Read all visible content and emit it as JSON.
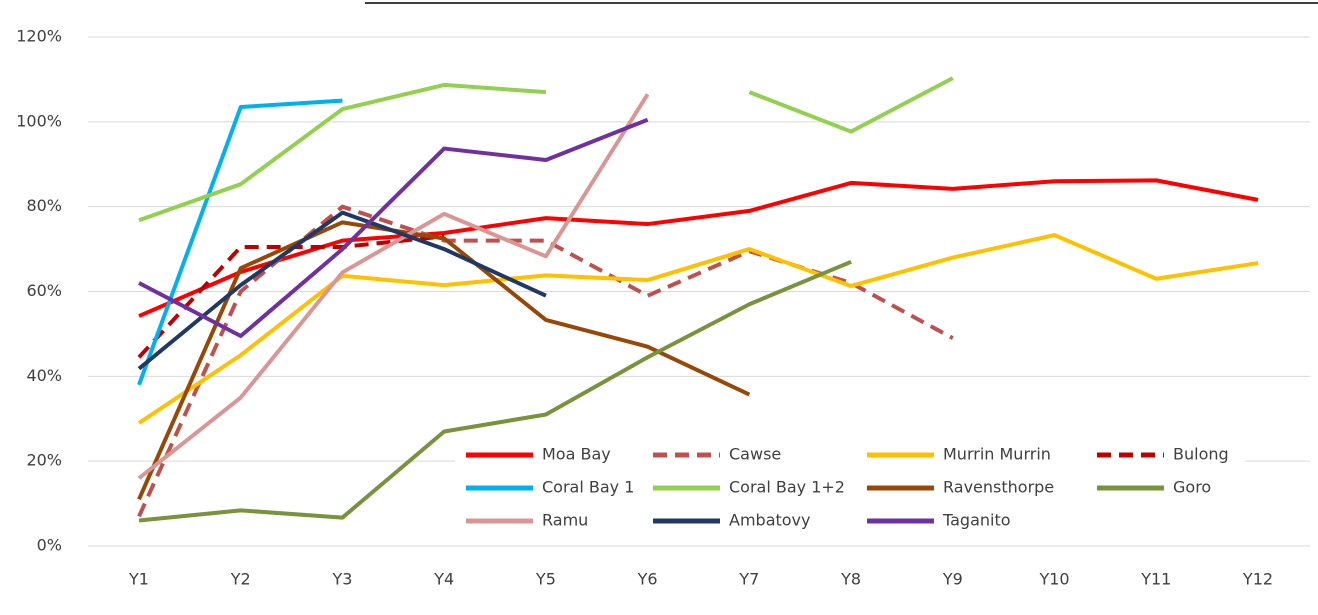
{
  "chart_data": {
    "type": "line",
    "categories": [
      "Y1",
      "Y2",
      "Y3",
      "Y4",
      "Y5",
      "Y6",
      "Y7",
      "Y8",
      "Y9",
      "Y10",
      "Y11",
      "Y12"
    ],
    "ylim": [
      0,
      120
    ],
    "yticks": [
      {
        "value": 0,
        "label": "0%"
      },
      {
        "value": 20,
        "label": "20%"
      },
      {
        "value": 40,
        "label": "40%"
      },
      {
        "value": 60,
        "label": "60%"
      },
      {
        "value": 80,
        "label": "80%"
      },
      {
        "value": 100,
        "label": "100%"
      },
      {
        "value": 120,
        "label": "120%"
      }
    ],
    "grid": true,
    "series": [
      {
        "name": "Moa Bay",
        "color": "#ff0000",
        "dashed": false,
        "values": [
          54.2,
          64.6,
          72,
          73.8,
          77.3,
          75.9,
          79,
          85.6,
          84.2,
          86,
          86.2,
          81.6
        ]
      },
      {
        "name": "Cawse",
        "color": "#c0504d",
        "dashed": true,
        "values": [
          7,
          60,
          80,
          72,
          72,
          59,
          69.5,
          62,
          49,
          null,
          null,
          null
        ]
      },
      {
        "name": "Murrin Murrin",
        "color": "#ffc000",
        "dashed": false,
        "values": [
          29,
          45,
          63.7,
          61.5,
          63.8,
          62.7,
          70,
          61.3,
          68,
          73.3,
          63,
          66.7
        ]
      },
      {
        "name": "Bulong",
        "color": "#c00000",
        "dashed": true,
        "values": [
          44.5,
          70.5,
          70.5,
          73,
          null,
          null,
          null,
          null,
          null,
          null,
          null,
          null
        ]
      },
      {
        "name": "Coral Bay 1",
        "color": "#00b0f0",
        "dashed": false,
        "values": [
          38,
          103.5,
          105,
          null,
          null,
          null,
          null,
          null,
          null,
          null,
          null,
          null
        ]
      },
      {
        "name": "Coral Bay 1+2",
        "color": "#92d050",
        "dashed": false,
        "values": [
          76.8,
          85.3,
          103,
          108.7,
          107,
          null,
          107,
          97.7,
          110.3,
          null,
          null,
          null
        ]
      },
      {
        "name": "Ravensthorpe",
        "color": "#974806",
        "dashed": false,
        "values": [
          11,
          65.5,
          76.3,
          72.5,
          53.3,
          47,
          35.7,
          null,
          null,
          null,
          null,
          null
        ]
      },
      {
        "name": "Goro",
        "color": "#77933c",
        "dashed": false,
        "values": [
          6,
          8.4,
          6.7,
          27,
          31,
          44.5,
          57,
          67,
          null,
          null,
          null,
          null
        ]
      },
      {
        "name": "Ramu",
        "color": "#da9694",
        "dashed": false,
        "values": [
          16,
          35,
          64.5,
          78.3,
          68.3,
          106.5,
          null,
          null,
          null,
          null,
          null,
          null
        ]
      },
      {
        "name": "Ambatovy",
        "color": "#1f3864",
        "dashed": false,
        "values": [
          41.8,
          61.5,
          78.6,
          70,
          59,
          null,
          null,
          null,
          null,
          null,
          null,
          null
        ]
      },
      {
        "name": "Taganito",
        "color": "#7030a0",
        "dashed": false,
        "values": [
          62,
          49.5,
          70,
          93.7,
          91,
          100.5,
          null,
          null,
          null,
          null,
          null,
          null
        ]
      }
    ],
    "legend": "lower right"
  }
}
